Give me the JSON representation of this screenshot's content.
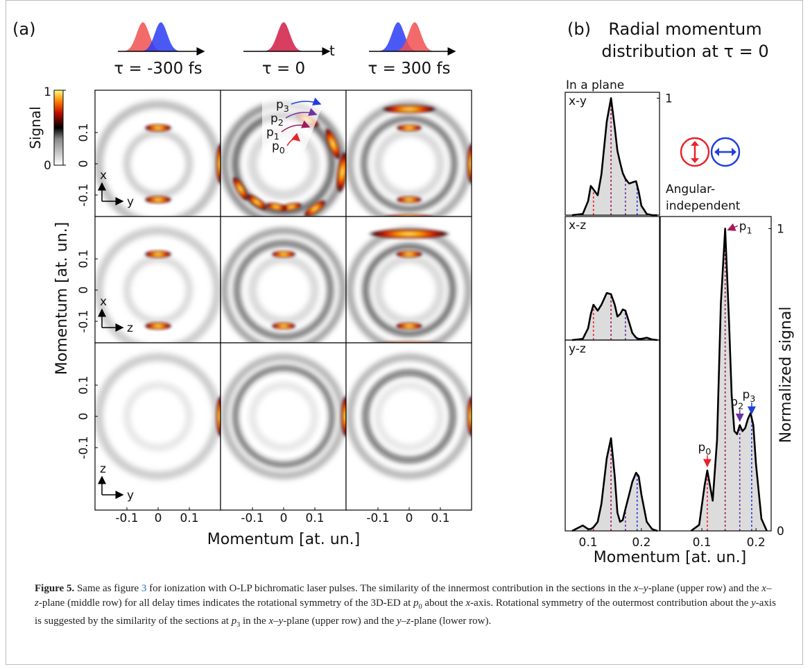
{
  "panel_a": {
    "label": "(a)",
    "time_axis": "t",
    "delays": [
      "τ = -300 fs",
      "τ = 0",
      "τ = 300 fs"
    ],
    "colorbar": {
      "title": "Signal",
      "max": 1,
      "min": 0
    },
    "ylabel": "Momentum [at. un.]",
    "xlabel": "Momentum [at. un.]",
    "yticks": [
      0.1,
      0,
      -0.1
    ],
    "xticks": [
      -0.1,
      0,
      0.1
    ],
    "row_axes": [
      [
        "x",
        "y"
      ],
      [
        "x",
        "z"
      ],
      [
        "z",
        "y"
      ]
    ],
    "momentum_labels": [
      {
        "symbol": "p",
        "index": 3,
        "color": "#1f3fe0"
      },
      {
        "symbol": "p",
        "index": 2,
        "color": "#7030a0"
      },
      {
        "symbol": "p",
        "index": 1,
        "color": "#a3195b"
      },
      {
        "symbol": "p",
        "index": 0,
        "color": "#e8232a"
      }
    ]
  },
  "panel_b": {
    "label": "(b)",
    "title": [
      "Radial momentum",
      "distribution at τ = 0"
    ],
    "left_heading": "In a plane",
    "right_heading": [
      "Angular-",
      "independent"
    ],
    "ylabel": "Normalized signal",
    "xlabel": "Momentum [at. un.]",
    "peak_labels": [
      {
        "symbol": "p",
        "index": 0,
        "color": "#e8232a"
      },
      {
        "symbol": "p",
        "index": 1,
        "color": "#a3195b"
      },
      {
        "symbol": "p",
        "index": 2,
        "color": "#7030a0"
      },
      {
        "symbol": "p",
        "index": 3,
        "color": "#1f3fe0"
      }
    ]
  },
  "chart_data": [
    {
      "type": "area",
      "title": "x-y",
      "color": "#000000",
      "fill": "#dcdcdc",
      "x": [
        0.07,
        0.09,
        0.1,
        0.105,
        0.11,
        0.118,
        0.125,
        0.135,
        0.143,
        0.15,
        0.155,
        0.16,
        0.165,
        0.17,
        0.177,
        0.183,
        0.19,
        0.195,
        0.2,
        0.21,
        0.22,
        0.23
      ],
      "values": [
        0,
        0.01,
        0.12,
        0.25,
        0.22,
        0.17,
        0.35,
        0.8,
        1.0,
        0.75,
        0.55,
        0.45,
        0.36,
        0.31,
        0.27,
        0.28,
        0.29,
        0.2,
        0.08,
        0.01,
        0,
        0
      ],
      "xlim": [
        0.057,
        0.234
      ],
      "ylim": [
        0,
        1.05
      ],
      "yticks": [
        1
      ],
      "xticks": [],
      "vlines": [
        0.11,
        0.143,
        0.17,
        0.192
      ],
      "vline_colors": [
        "#e8232a",
        "#a3195b",
        "#7030a0",
        "#1f3fe0"
      ]
    },
    {
      "type": "area",
      "title": "x-z",
      "color": "#000000",
      "fill": "#dcdcdc",
      "x": [
        0.07,
        0.09,
        0.1,
        0.105,
        0.11,
        0.118,
        0.125,
        0.135,
        0.143,
        0.15,
        0.155,
        0.16,
        0.165,
        0.17,
        0.177,
        0.183,
        0.19,
        0.195,
        0.2,
        0.21,
        0.22,
        0.23
      ],
      "values": [
        0,
        0.01,
        0.1,
        0.22,
        0.3,
        0.25,
        0.3,
        0.4,
        0.39,
        0.3,
        0.2,
        0.22,
        0.26,
        0.25,
        0.15,
        0.06,
        0.02,
        0.01,
        0.01,
        0.02,
        0.005,
        0
      ],
      "xlim": [
        0.057,
        0.234
      ],
      "ylim": [
        0,
        1.05
      ],
      "yticks": [],
      "xticks": [],
      "vlines": [
        0.11,
        0.143,
        0.17,
        0.192
      ],
      "vline_colors": [
        "#e8232a",
        "#a3195b",
        "#7030a0",
        "#1f3fe0"
      ]
    },
    {
      "type": "area",
      "title": "y-z",
      "color": "#000000",
      "fill": "#dcdcdc",
      "x": [
        0.07,
        0.09,
        0.1,
        0.105,
        0.11,
        0.118,
        0.125,
        0.135,
        0.143,
        0.15,
        0.155,
        0.16,
        0.165,
        0.17,
        0.177,
        0.183,
        0.19,
        0.195,
        0.2,
        0.21,
        0.22,
        0.23
      ],
      "values": [
        0,
        0.03,
        0.01,
        0.01,
        0.02,
        0.05,
        0.15,
        0.4,
        0.51,
        0.3,
        0.1,
        0.05,
        0.06,
        0.12,
        0.2,
        0.27,
        0.32,
        0.3,
        0.2,
        0.05,
        0.01,
        0
      ],
      "xlim": [
        0.057,
        0.234
      ],
      "ylim": [
        0,
        1.05
      ],
      "yticks": [],
      "xticks": [
        0.1,
        0.2
      ],
      "vlines": [
        0.11,
        0.143,
        0.17,
        0.192
      ],
      "vline_colors": [
        "#e8232a",
        "#a3195b",
        "#7030a0",
        "#1f3fe0"
      ]
    },
    {
      "type": "area",
      "color": "#000000",
      "fill": "#dcdcdc",
      "x": [
        0.08,
        0.095,
        0.105,
        0.11,
        0.115,
        0.12,
        0.128,
        0.135,
        0.143,
        0.15,
        0.155,
        0.16,
        0.165,
        0.17,
        0.175,
        0.18,
        0.185,
        0.19,
        0.195,
        0.2,
        0.21,
        0.22
      ],
      "values": [
        0,
        0.02,
        0.15,
        0.2,
        0.15,
        0.1,
        0.3,
        0.75,
        1.0,
        0.7,
        0.45,
        0.33,
        0.32,
        0.35,
        0.33,
        0.34,
        0.37,
        0.39,
        0.35,
        0.22,
        0.04,
        0
      ],
      "xlim": [
        0.023,
        0.228
      ],
      "ylim": [
        0,
        1.04
      ],
      "yticks": [
        0,
        1
      ],
      "xticks": [
        0.1,
        0.2
      ],
      "vlines": [
        0.11,
        0.143,
        0.17,
        0.192
      ],
      "vline_colors": [
        "#e8232a",
        "#a3195b",
        "#7030a0",
        "#1f3fe0"
      ]
    }
  ],
  "caption": {
    "label": "Figure 5.",
    "runs": [
      {
        "text": " Same as figure "
      },
      {
        "text": "3",
        "link": true
      },
      {
        "text": " for ionization with O-LP bichromatic laser pulses. The similarity of the innermost contribution in the sections in the "
      },
      {
        "text": "x",
        "italic": true
      },
      {
        "text": "–"
      },
      {
        "text": "y",
        "italic": true
      },
      {
        "text": "-plane (upper row) and the "
      },
      {
        "text": "x",
        "italic": true
      },
      {
        "text": "–"
      },
      {
        "text": "z",
        "italic": true
      },
      {
        "text": "-plane (middle row) for all delay times indicates the rotational symmetry of the 3D-ED at "
      },
      {
        "text": "p",
        "italic": true
      },
      {
        "text": "0",
        "sub": true
      },
      {
        "text": " about the "
      },
      {
        "text": "x",
        "italic": true
      },
      {
        "text": "-axis. Rotational symmetry of the outermost contribution about the "
      },
      {
        "text": "y",
        "italic": true
      },
      {
        "text": "-axis is suggested by the similarity of the sections at "
      },
      {
        "text": "p",
        "italic": true
      },
      {
        "text": "3",
        "sub": true
      },
      {
        "text": " in the "
      },
      {
        "text": "x",
        "italic": true
      },
      {
        "text": "–"
      },
      {
        "text": "y",
        "italic": true
      },
      {
        "text": "-plane (upper row) and the "
      },
      {
        "text": "y",
        "italic": true
      },
      {
        "text": "–"
      },
      {
        "text": "z",
        "italic": true
      },
      {
        "text": "-plane (lower row)."
      }
    ]
  }
}
